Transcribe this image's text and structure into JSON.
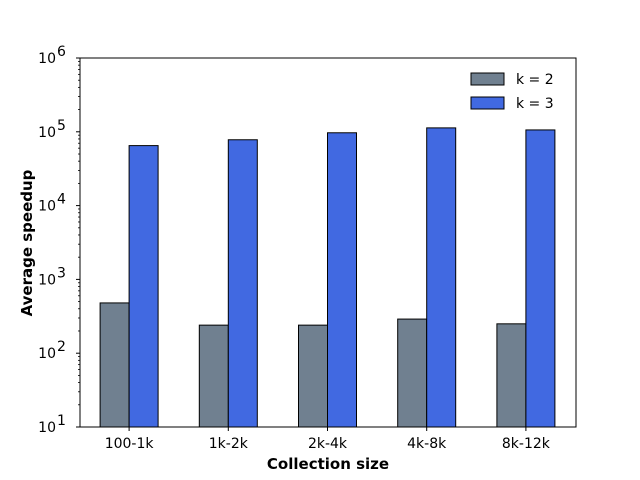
{
  "chart_data": {
    "type": "bar",
    "title": "",
    "xlabel": "Collection size",
    "ylabel": "Average speedup",
    "yscale": "log",
    "ylim": [
      10,
      1000000
    ],
    "yticks": [
      10,
      100,
      1000,
      10000,
      100000,
      1000000
    ],
    "ytick_exponents": [
      "1",
      "2",
      "3",
      "4",
      "5",
      "6"
    ],
    "ytick_base": "10",
    "categories": [
      "100-1k",
      "1k-2k",
      "2k-4k",
      "4k-8k",
      "8k-12k"
    ],
    "series": [
      {
        "name": "k = 2",
        "color": "#708090",
        "values": [
          480,
          240,
          240,
          290,
          250
        ]
      },
      {
        "name": "k = 3",
        "color": "#4169e1",
        "values": [
          65000,
          78000,
          97000,
          113000,
          106000
        ]
      }
    ],
    "legend_position": "top-right",
    "grid": false
  }
}
